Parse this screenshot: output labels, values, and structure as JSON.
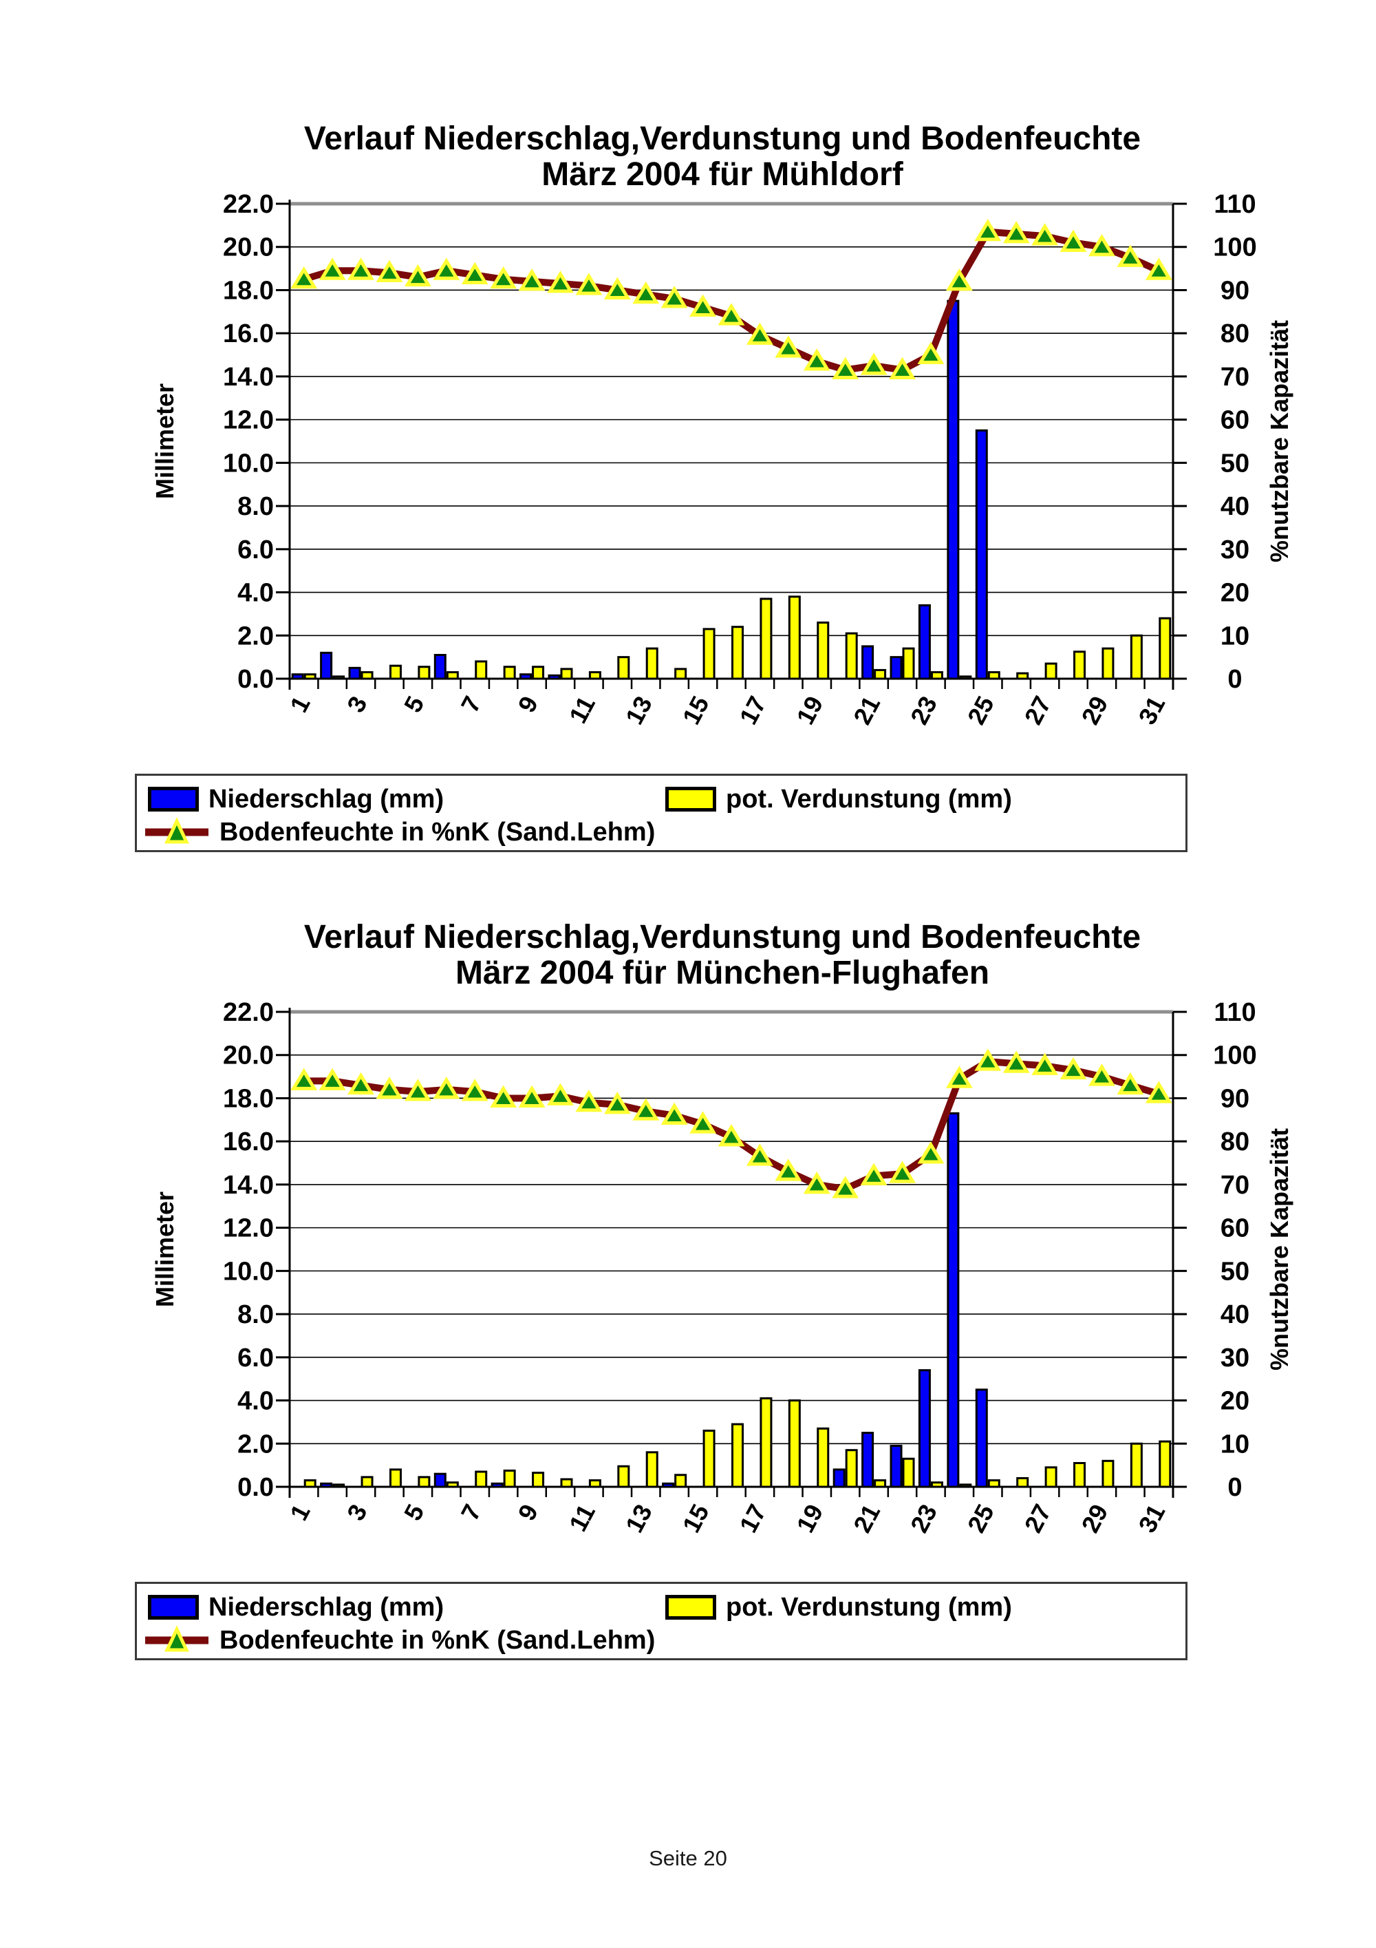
{
  "page": {
    "footer": "Seite 20"
  },
  "colors": {
    "precip_blue": "#0000FA",
    "evap_yellow": "#FFFF00",
    "moisture_line": "#7A0A0A",
    "marker_green": "#0E8A12",
    "marker_outline": "#FFFF33",
    "grid": "#000000",
    "top_border_gray": "#8f8f8f"
  },
  "charts": [
    {
      "title_line1": "Verlauf Niederschlag,Verdunstung und Bodenfeuchte",
      "title_line2": "März 2004 für Mühldorf",
      "left_axis": {
        "label": "Millimeter",
        "ticks": [
          "22.0",
          "20.0",
          "18.0",
          "16.0",
          "14.0",
          "12.0",
          "10.0",
          "8.0",
          "6.0",
          "4.0",
          "2.0",
          "0.0"
        ]
      },
      "right_axis": {
        "label": "%nutzbare Kapazität",
        "ticks": [
          "110",
          "100",
          "90",
          "80",
          "70",
          "60",
          "50",
          "40",
          "30",
          "20",
          "10",
          "0"
        ]
      },
      "x_axis": {
        "tick_labels": [
          "1",
          "3",
          "5",
          "7",
          "9",
          "11",
          "13",
          "15",
          "17",
          "19",
          "21",
          "23",
          "25",
          "27",
          "29",
          "31"
        ]
      }
    },
    {
      "title_line1": "Verlauf Niederschlag,Verdunstung und Bodenfeuchte",
      "title_line2": "März 2004 für München-Flughafen",
      "left_axis": {
        "label": "Millimeter",
        "ticks": [
          "22.0",
          "20.0",
          "18.0",
          "16.0",
          "14.0",
          "12.0",
          "10.0",
          "8.0",
          "6.0",
          "4.0",
          "2.0",
          "0.0"
        ]
      },
      "right_axis": {
        "label": "%nutzbare Kapazität",
        "ticks": [
          "110",
          "100",
          "90",
          "80",
          "70",
          "60",
          "50",
          "40",
          "30",
          "20",
          "10",
          "0"
        ]
      },
      "x_axis": {
        "tick_labels": [
          "1",
          "3",
          "5",
          "7",
          "9",
          "11",
          "13",
          "15",
          "17",
          "19",
          "21",
          "23",
          "25",
          "27",
          "29",
          "31"
        ]
      }
    }
  ],
  "chart_data": [
    {
      "type": "bar",
      "title": "Verlauf Niederschlag,Verdunstung und Bodenfeuchte März 2004 für Mühldorf",
      "x": [
        1,
        2,
        3,
        4,
        5,
        6,
        7,
        8,
        9,
        10,
        11,
        12,
        13,
        14,
        15,
        16,
        17,
        18,
        19,
        20,
        21,
        22,
        23,
        24,
        25,
        26,
        27,
        28,
        29,
        30,
        31
      ],
      "xlabel": "",
      "ylabel_left": "Millimeter",
      "ylim_left": [
        0,
        22
      ],
      "ylabel_right": "%nutzbare Kapazität",
      "ylim_right": [
        0,
        110
      ],
      "grid": true,
      "legend_position": "bottom",
      "series": [
        {
          "name": "Niederschlag (mm)",
          "type": "bar",
          "axis": "left",
          "color": "#0000FA",
          "values": [
            0.2,
            1.2,
            0.5,
            0,
            0,
            1.1,
            0,
            0,
            0.2,
            0.15,
            0,
            0,
            0,
            0,
            0,
            0,
            0,
            0,
            0,
            0,
            1.5,
            1.0,
            3.4,
            17.5,
            11.5,
            0,
            0,
            0,
            0,
            0,
            0
          ]
        },
        {
          "name": "pot. Verdunstung (mm)",
          "type": "bar",
          "axis": "left",
          "color": "#FFFF00",
          "values": [
            0.2,
            0.1,
            0.3,
            0.6,
            0.55,
            0.3,
            0.8,
            0.55,
            0.55,
            0.45,
            0.3,
            1.0,
            1.4,
            0.45,
            2.3,
            2.4,
            3.7,
            3.8,
            2.6,
            2.1,
            0.4,
            1.4,
            0.3,
            0.1,
            0.3,
            0.25,
            0.7,
            1.25,
            1.4,
            2.0,
            2.8
          ]
        },
        {
          "name": "Bodenfeuchte in %nK (Sand.Lehm)",
          "type": "line",
          "axis": "right",
          "color": "#7A0A0A",
          "values": [
            92.5,
            94.5,
            94.5,
            94,
            93,
            94.5,
            93.5,
            92.5,
            92,
            91.5,
            91,
            90,
            89,
            88,
            86,
            84,
            79.5,
            76.5,
            73.5,
            71.5,
            72.5,
            71.5,
            75,
            92,
            103.5,
            103,
            102.5,
            101,
            100,
            97.5,
            94.5
          ]
        }
      ]
    },
    {
      "type": "bar",
      "title": "Verlauf Niederschlag,Verdunstung und Bodenfeuchte März 2004 für München-Flughafen",
      "x": [
        1,
        2,
        3,
        4,
        5,
        6,
        7,
        8,
        9,
        10,
        11,
        12,
        13,
        14,
        15,
        16,
        17,
        18,
        19,
        20,
        21,
        22,
        23,
        24,
        25,
        26,
        27,
        28,
        29,
        30,
        31
      ],
      "xlabel": "",
      "ylabel_left": "Millimeter",
      "ylim_left": [
        0,
        22
      ],
      "ylabel_right": "%nutzbare Kapazität",
      "ylim_right": [
        0,
        110
      ],
      "grid": true,
      "legend_position": "bottom",
      "series": [
        {
          "name": "Niederschlag (mm)",
          "type": "bar",
          "axis": "left",
          "color": "#0000FA",
          "values": [
            0,
            0.15,
            0,
            0,
            0,
            0.6,
            0,
            0.15,
            0,
            0,
            0,
            0,
            0,
            0.15,
            0,
            0,
            0,
            0,
            0,
            0.8,
            2.5,
            1.9,
            5.4,
            17.3,
            4.5,
            0,
            0,
            0,
            0,
            0,
            0
          ]
        },
        {
          "name": "pot. Verdunstung (mm)",
          "type": "bar",
          "axis": "left",
          "color": "#FFFF00",
          "values": [
            0.3,
            0.1,
            0.45,
            0.8,
            0.45,
            0.2,
            0.7,
            0.75,
            0.65,
            0.35,
            0.3,
            0.95,
            1.6,
            0.55,
            2.6,
            2.9,
            4.1,
            4.0,
            2.7,
            1.7,
            0.3,
            1.3,
            0.2,
            0.1,
            0.3,
            0.4,
            0.9,
            1.1,
            1.2,
            2.0,
            2.1
          ]
        },
        {
          "name": "Bodenfeuchte in %nK (Sand.Lehm)",
          "type": "line",
          "axis": "right",
          "color": "#7A0A0A",
          "values": [
            94,
            94,
            93,
            92,
            91.5,
            92,
            91.5,
            90,
            90,
            90.5,
            89,
            88.5,
            87,
            86,
            84,
            81,
            76.5,
            73,
            70,
            69,
            72,
            72.5,
            77,
            94.5,
            98.5,
            98,
            97.5,
            96.5,
            95,
            93,
            91
          ]
        }
      ]
    }
  ]
}
